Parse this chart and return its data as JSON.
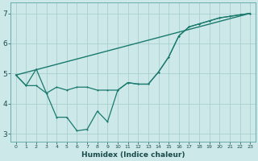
{
  "xlabel": "Humidex (Indice chaleur)",
  "bg_color": "#cce8e8",
  "grid_color": "#aacfcf",
  "line_color": "#1a7a6e",
  "xlim": [
    -0.5,
    23.5
  ],
  "ylim": [
    2.75,
    7.35
  ],
  "yticks": [
    3,
    4,
    5,
    6,
    7
  ],
  "line1_x": [
    0,
    1,
    2,
    3,
    4,
    5,
    6,
    7,
    8,
    9,
    10,
    11,
    12,
    13,
    14,
    15,
    16,
    17,
    18,
    19,
    20,
    21,
    22,
    23
  ],
  "line1_y": [
    4.95,
    4.6,
    4.6,
    4.35,
    4.55,
    4.45,
    4.55,
    4.55,
    4.45,
    4.45,
    4.45,
    4.7,
    4.65,
    4.65,
    5.05,
    5.55,
    6.25,
    6.55,
    6.65,
    6.75,
    6.85,
    6.9,
    6.95,
    7.0
  ],
  "line2_x": [
    0,
    1,
    2,
    3,
    4,
    5,
    6,
    7,
    8,
    9,
    10,
    11,
    12,
    13,
    14,
    15,
    16,
    17,
    18,
    19,
    20,
    21,
    22,
    23
  ],
  "line2_y": [
    4.95,
    4.6,
    5.15,
    4.35,
    3.55,
    3.55,
    3.1,
    3.15,
    3.75,
    3.4,
    4.45,
    4.7,
    4.65,
    4.65,
    5.05,
    5.55,
    6.25,
    6.55,
    6.65,
    6.75,
    6.85,
    6.9,
    6.95,
    7.0
  ],
  "line3_x": [
    0,
    23
  ],
  "line3_y": [
    4.95,
    7.0
  ]
}
